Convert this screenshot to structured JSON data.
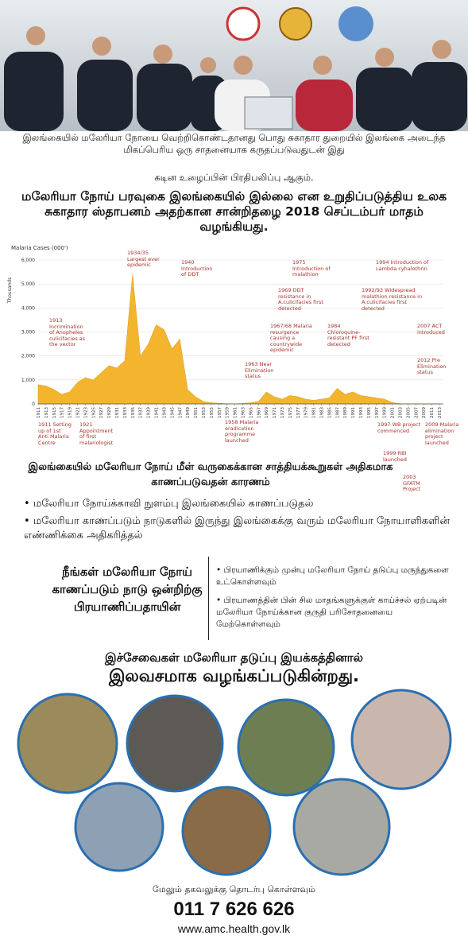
{
  "caption": {
    "line1": "இலங்கையில் மலேரியா நோயை வெற்றிகொண்டதானது பொது சுகாதார துறையில் இலங்கை அடைந்த மிகப்பெரிய ஒரு சாதனையாக கருதப்படுவதுடன் இது",
    "line2": "கடின உழைப்பின் பிரதிபலிப்பு ஆகும்."
  },
  "headline": "மலேரியா நோய் பரவுகை இலங்கையில் இல்லை என உறுதிப்படுத்திய உலக சுகாதார ஸ்தாபனம் அதற்கான சான்றிதழை 2018 செப்டம்பர் மாதம் வழங்கியது.",
  "chart_data": {
    "type": "area",
    "title": "Malaria Cases (000')",
    "y_label": "Thousands",
    "color": "#f3b52e",
    "x": [
      1911,
      1913,
      1915,
      1917,
      1919,
      1921,
      1923,
      1925,
      1927,
      1929,
      1931,
      1933,
      1935,
      1937,
      1939,
      1941,
      1943,
      1945,
      1947,
      1949,
      1951,
      1953,
      1955,
      1957,
      1959,
      1961,
      1963,
      1965,
      1967,
      1969,
      1971,
      1973,
      1975,
      1977,
      1979,
      1981,
      1983,
      1985,
      1987,
      1989,
      1991,
      1993,
      1995,
      1997,
      1999,
      2001,
      2003,
      2005,
      2007,
      2009,
      2011,
      2013
    ],
    "values": [
      800,
      750,
      600,
      400,
      500,
      900,
      1100,
      1000,
      1300,
      1600,
      1500,
      1800,
      5400,
      2000,
      2500,
      3300,
      3100,
      2300,
      2700,
      600,
      300,
      100,
      50,
      30,
      10,
      5,
      20,
      50,
      100,
      500,
      300,
      200,
      350,
      300,
      200,
      150,
      200,
      250,
      650,
      400,
      500,
      350,
      300,
      250,
      200,
      60,
      10,
      2,
      1,
      0.5,
      0.1,
      0
    ],
    "xlim": [
      1911,
      2014
    ],
    "xticks": [
      1911,
      1913,
      1915,
      1917,
      1919,
      1921,
      1923,
      1925,
      1927,
      1929,
      1931,
      1933,
      1935,
      1937,
      1939,
      1941,
      1943,
      1945,
      1947,
      1949,
      1951,
      1953,
      1955,
      1957,
      1959,
      1961,
      1963,
      1965,
      1967,
      1969,
      1971,
      1973,
      1975,
      1977,
      1979,
      1981,
      1983,
      1985,
      1987,
      1989,
      1991,
      1993,
      1995,
      1997,
      1999,
      2001,
      2003,
      2005,
      2007,
      2009,
      2011,
      2013
    ],
    "ylim": [
      0,
      6000
    ],
    "yticks": [
      0,
      {
        "value": 1000,
        "label": "1,000"
      },
      {
        "value": 2000,
        "label": "2,000"
      },
      {
        "value": 3000,
        "label": "3,000"
      },
      {
        "value": 4000,
        "label": "4,000"
      },
      {
        "value": 5000,
        "label": "5,000"
      },
      {
        "value": 6000,
        "label": "6,000"
      }
    ],
    "grid": true,
    "annotations": [
      "1934/35 Largest ever epidemic",
      "1940 Introduction of DDT",
      "1975 Introduction of malathion",
      "1994 Introduction of Lambda cyhalothrin",
      "1969 DDT resistance in A.culicifacies first detected",
      "1992/93 Widespread malathion resistance in A.culicifacies first detected",
      "1913 Incrimination of Anopheles culicifacies as the vector",
      "1967/68 Malaria resurgence causing a countrywide epidemic",
      "1984 Chloroquine-resistant PF first detected",
      "2007 ACT introduced",
      "1963 Near Elimination status",
      "2012 Pre Elimination status",
      "1911 Setting up of 1st Anti Malaria Centre",
      "1921 Appointment of first malariologist",
      "1958 Malaria eradication programme launched",
      "1997 WB project commenced",
      "2009 Malaria elimination project launched",
      "1999 RBI launched",
      "2003 GFATM Project"
    ]
  },
  "reasons": {
    "title": "இலங்கையில் மலேரியா நோய் மீள் வருகைக்கான சாத்தியக்கூறுகள் அதிகமாக காணப்படுவதன் காரணம்",
    "items": [
      "மலேரியா நோய்க்காவி நுளம்பு இலங்கையில் காணப்படுதல்",
      "மலேரியா காணப்படும் நாடுகளில் இருந்து இலங்கைக்கு வரும் மலேரியா நோயாளிகளின் எண்ணிக்கை அதிகரித்தல்"
    ]
  },
  "travel": {
    "title": "நீங்கள் மலேரியா நோய் காணப்படும் நாடு ஒன்றிற்கு பிரயாணிப்பதாயின்",
    "items": [
      "பிரயாணிக்கும் முன்பு மலேரியா நோய் தடுப்பு மருந்துகளை உட்கொள்ளவும்",
      "பிரயாணத்தின் பின் சில மாதங்களுக்குள் காய்ச்சல் ஏற்படின் மலேரியா நோய்க்கான குருதி பரிசோதனையை மேற்கொள்ளவும்"
    ]
  },
  "service": {
    "line1": "இச்சேவைகள் மலேரியா தடுப்பு இயக்கத்தினால்",
    "line2": "இலவசமாக வழங்கப்படுகின்றது."
  },
  "footer": {
    "contact": "மேலும் தகவலுக்கு தொடர்பு கொள்ளவும்",
    "phone": "011 7 626 626",
    "web": "www.amc.health.gov.lk"
  }
}
